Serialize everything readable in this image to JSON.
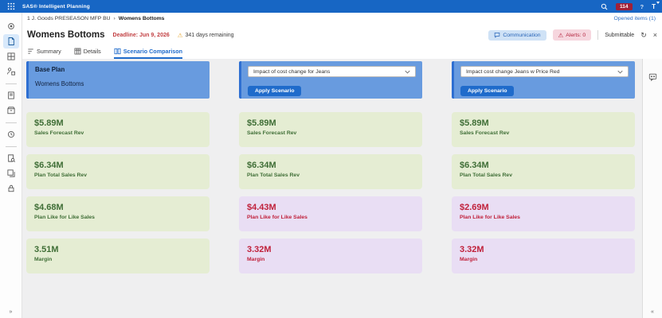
{
  "topbar": {
    "app_title": "SAS® Intelligent Planning",
    "notification_count": "114",
    "help_label": "?",
    "avatar_initial": "T"
  },
  "breadcrumb": {
    "parent": "1 J. Goods PRESEASON MFP BU",
    "separator": "›",
    "current": "Womens Bottoms",
    "opened_items_label": "Opened items (1)"
  },
  "page_header": {
    "title": "Womens Bottoms",
    "deadline_label": "Deadline: Jun 9, 2026",
    "warning_glyph": "⚠",
    "days_remaining_label": "341 days remaining",
    "communication_label": "Communication",
    "alerts_label": "Alerts: 0",
    "submittable_label": "Submittable",
    "refresh_glyph": "↻",
    "close_glyph": "×"
  },
  "tabs": {
    "summary": "Summary",
    "details": "Details",
    "scenario_comparison": "Scenario Comparison"
  },
  "comparison": {
    "base": {
      "title": "Base Plan",
      "subtitle": "Womens Bottoms",
      "cards": [
        {
          "value": "$5.89M",
          "label": "Sales Forecast Rev",
          "status": "good"
        },
        {
          "value": "$6.34M",
          "label": "Plan Total Sales Rev",
          "status": "good"
        },
        {
          "value": "$4.68M",
          "label": "Plan Like for Like Sales",
          "status": "good"
        },
        {
          "value": "3.51M",
          "label": "Margin",
          "status": "good"
        }
      ]
    },
    "scenario1": {
      "dropdown_value": "Impact of cost change for Jeans",
      "apply_label": "Apply Scenario",
      "cards": [
        {
          "value": "$5.89M",
          "label": "Sales Forecast Rev",
          "status": "good"
        },
        {
          "value": "$6.34M",
          "label": "Plan Total Sales Rev",
          "status": "good"
        },
        {
          "value": "$4.43M",
          "label": "Plan Like for Like Sales",
          "status": "bad"
        },
        {
          "value": "3.32M",
          "label": "Margin",
          "status": "bad"
        }
      ]
    },
    "scenario2": {
      "dropdown_value": "Impact cost change Jeans w Price Red",
      "apply_label": "Apply Scenario",
      "cards": [
        {
          "value": "$5.89M",
          "label": "Sales Forecast Rev",
          "status": "good"
        },
        {
          "value": "$6.34M",
          "label": "Plan Total Sales Rev",
          "status": "good"
        },
        {
          "value": "$2.69M",
          "label": "Plan Like for Like Sales",
          "status": "bad"
        },
        {
          "value": "3.32M",
          "label": "Margin",
          "status": "bad"
        }
      ]
    }
  },
  "misc": {
    "sidebar_expand_glyph": "»",
    "rail_collapse_glyph": "«"
  },
  "colors": {
    "topbar_blue": "#1766c4",
    "accent_blue": "#1f6bcb",
    "panel_blue": "#689bdf",
    "panel_stripe_blue": "#2e6fd2",
    "good_card_bg": "#e5edd3",
    "good_card_text": "#3f6e36",
    "bad_card_bg": "#e9def4",
    "bad_card_text": "#c0213b",
    "badge_red": "#a02038",
    "communication_pill_bg": "#cfe2f6",
    "communication_pill_text": "#2a66b8",
    "alerts_pill_bg": "#f6d6de",
    "alerts_pill_text": "#b3223c",
    "deadline_red": "#c24043",
    "warning_amber": "#e8a934"
  }
}
